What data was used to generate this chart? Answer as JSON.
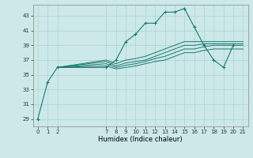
{
  "xlabel": "Humidex (Indice chaleur)",
  "bg_color": "#cce8e8",
  "line_color": "#1a7a6e",
  "grid_color": "#aad4d4",
  "xticks": [
    0,
    1,
    2,
    7,
    8,
    9,
    10,
    11,
    12,
    13,
    14,
    15,
    16,
    17,
    18,
    19,
    20,
    21
  ],
  "yticks": [
    29,
    31,
    33,
    35,
    37,
    39,
    41,
    43
  ],
  "ylim": [
    28.0,
    44.5
  ],
  "xlim": [
    -0.5,
    21.5
  ],
  "lines": [
    {
      "x": [
        0,
        1,
        2,
        7,
        8,
        9,
        10,
        11,
        12,
        13,
        14,
        15,
        16,
        17,
        18,
        19,
        20
      ],
      "y": [
        29,
        34,
        36,
        36,
        37,
        39.5,
        40.5,
        42,
        42,
        43.5,
        43.5,
        44,
        41.5,
        39,
        37,
        36,
        39
      ],
      "marker": true
    },
    {
      "x": [
        2,
        7,
        8,
        9,
        10,
        11,
        12,
        13,
        14,
        15,
        16,
        17,
        18,
        19,
        20,
        21
      ],
      "y": [
        36,
        37,
        36.5,
        37,
        37.2,
        37.5,
        38,
        38.5,
        39,
        39.5,
        39.5,
        39.5,
        39.5,
        39.5,
        39.5,
        39.5
      ],
      "marker": false
    },
    {
      "x": [
        2,
        7,
        8,
        9,
        10,
        11,
        12,
        13,
        14,
        15,
        16,
        17,
        18,
        19,
        20,
        21
      ],
      "y": [
        36,
        36.8,
        36.2,
        36.6,
        36.8,
        37.0,
        37.5,
        38.0,
        38.5,
        39.0,
        39.0,
        39.2,
        39.2,
        39.2,
        39.2,
        39.2
      ],
      "marker": false
    },
    {
      "x": [
        2,
        7,
        8,
        9,
        10,
        11,
        12,
        13,
        14,
        15,
        16,
        17,
        18,
        19,
        20,
        21
      ],
      "y": [
        36,
        36.5,
        36.0,
        36.3,
        36.5,
        36.8,
        37.2,
        37.5,
        38.0,
        38.5,
        38.5,
        38.8,
        39.0,
        39.0,
        39.0,
        39.0
      ],
      "marker": false
    },
    {
      "x": [
        2,
        7,
        8,
        9,
        10,
        11,
        12,
        13,
        14,
        15,
        16,
        17,
        18,
        19,
        20,
        21
      ],
      "y": [
        36,
        36.2,
        35.8,
        36.0,
        36.2,
        36.5,
        36.8,
        37.0,
        37.5,
        38.0,
        38.0,
        38.3,
        38.5,
        38.5,
        38.5,
        38.5
      ],
      "marker": false
    }
  ],
  "title_fontsize": 7,
  "xlabel_fontsize": 6,
  "tick_fontsize": 5
}
